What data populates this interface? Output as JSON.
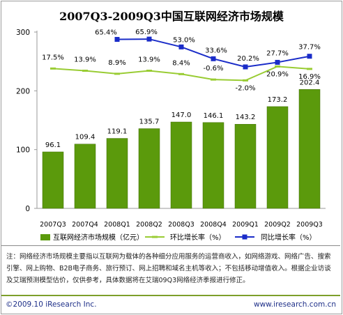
{
  "chart_data": {
    "type": "bar",
    "title": "2007Q3-2009Q3中国互联网经济市场规模",
    "categories": [
      "2007Q3",
      "2007Q4",
      "2008Q1",
      "2008Q2",
      "2008Q3",
      "2008Q4",
      "2009Q1",
      "2009Q2",
      "2009Q3"
    ],
    "ylim": [
      0,
      300
    ],
    "yticks": [
      0,
      100,
      200,
      300
    ],
    "series": [
      {
        "name": "互联网经济市场规模（亿元）",
        "kind": "bar",
        "values": [
          96.1,
          109.4,
          119.1,
          135.7,
          147.0,
          146.1,
          143.2,
          173.2,
          202.4
        ],
        "labels": [
          "96.1",
          "109.4",
          "119.1",
          "135.7",
          "147.0",
          "146.1",
          "143.2",
          "173.2",
          "202.4"
        ],
        "color": "#5b9a0c"
      },
      {
        "name": "环比增长率（%）",
        "kind": "line",
        "values": [
          17.5,
          13.9,
          8.9,
          13.9,
          8.4,
          -0.6,
          -2.0,
          20.9,
          16.9
        ],
        "labels": [
          "17.5%",
          "13.9%",
          "8.9%",
          "13.9%",
          "8.4%",
          "-0.6%",
          "-2.0%",
          "20.9%",
          "16.9%"
        ],
        "color": "#99cc33"
      },
      {
        "name": "同比增长率（%）",
        "kind": "line",
        "values": [
          null,
          null,
          65.4,
          65.9,
          53.0,
          33.6,
          20.2,
          27.7,
          37.7
        ],
        "labels": [
          "",
          "",
          "65.4%",
          "65.9%",
          "53.0%",
          "33.6%",
          "20.2%",
          "27.7%",
          "37.7%"
        ],
        "color": "#1a2cc8"
      }
    ],
    "legend_position": "bottom"
  },
  "note": "注：网络经济市场规模主要指以互联网为载体的各种细分应用服务的运营商收入，如网络游戏、网络广告、搜索引擎、网上购物、B2B电子商务、旅行预订、网上招聘和域名主机等收入；不包括移动增值收入。根据企业访谈及艾瑞预测模型估价，仅供参考，具体数据将在艾瑞09Q3网络经济季报进行修正。",
  "footer": {
    "left": "©2009.10 iResearch Inc.",
    "right": "www.iresearch.com.cn"
  }
}
